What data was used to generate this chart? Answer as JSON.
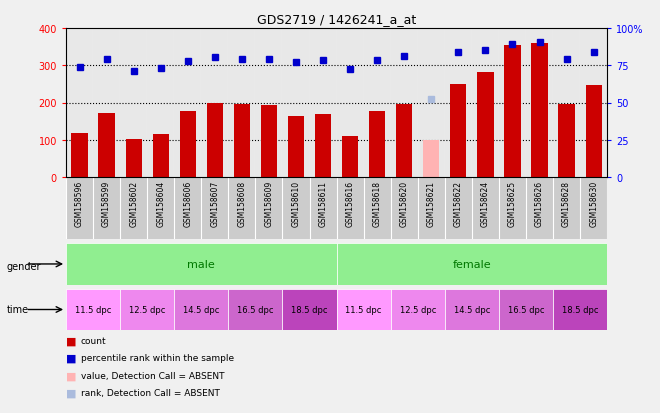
{
  "title": "GDS2719 / 1426241_a_at",
  "samples": [
    "GSM158596",
    "GSM158599",
    "GSM158602",
    "GSM158604",
    "GSM158606",
    "GSM158607",
    "GSM158608",
    "GSM158609",
    "GSM158610",
    "GSM158611",
    "GSM158616",
    "GSM158618",
    "GSM158620",
    "GSM158621",
    "GSM158622",
    "GSM158624",
    "GSM158625",
    "GSM158626",
    "GSM158628",
    "GSM158630"
  ],
  "bar_values": [
    118,
    172,
    101,
    115,
    178,
    200,
    195,
    192,
    163,
    168,
    110,
    177,
    195,
    100,
    250,
    283,
    355,
    360,
    195,
    248
  ],
  "bar_absent": [
    false,
    false,
    false,
    false,
    false,
    false,
    false,
    false,
    false,
    false,
    false,
    false,
    false,
    true,
    false,
    false,
    false,
    false,
    false,
    false
  ],
  "dot_values": [
    295,
    318,
    285,
    292,
    312,
    322,
    318,
    318,
    308,
    315,
    290,
    315,
    325,
    210,
    335,
    340,
    358,
    362,
    318,
    335
  ],
  "dot_absent": [
    false,
    false,
    false,
    false,
    false,
    false,
    false,
    false,
    false,
    false,
    false,
    false,
    false,
    true,
    false,
    false,
    false,
    false,
    false,
    false
  ],
  "bar_color": "#cc0000",
  "bar_absent_color": "#ffb3b3",
  "dot_color": "#0000cc",
  "dot_absent_color": "#aabbdd",
  "ylim_left": [
    0,
    400
  ],
  "ylim_right": [
    0,
    100
  ],
  "yticks_left": [
    0,
    100,
    200,
    300,
    400
  ],
  "yticks_right": [
    0,
    25,
    50,
    75,
    100
  ],
  "ytick_labels_right": [
    "0",
    "25",
    "50",
    "75",
    "100%"
  ],
  "hlines": [
    100,
    200,
    300
  ],
  "time_labels": [
    "11.5 dpc",
    "12.5 dpc",
    "14.5 dpc",
    "16.5 dpc",
    "18.5 dpc"
  ],
  "time_colors": [
    "#ff99ff",
    "#ee88ee",
    "#dd77dd",
    "#cc66cc",
    "#bb44bb"
  ],
  "plot_bg": "#e8e8e8",
  "sample_bg": "#cccccc",
  "fig_bg": "#f0f0f0",
  "gender_color": "#90ee90",
  "gender_text_color": "#007700"
}
